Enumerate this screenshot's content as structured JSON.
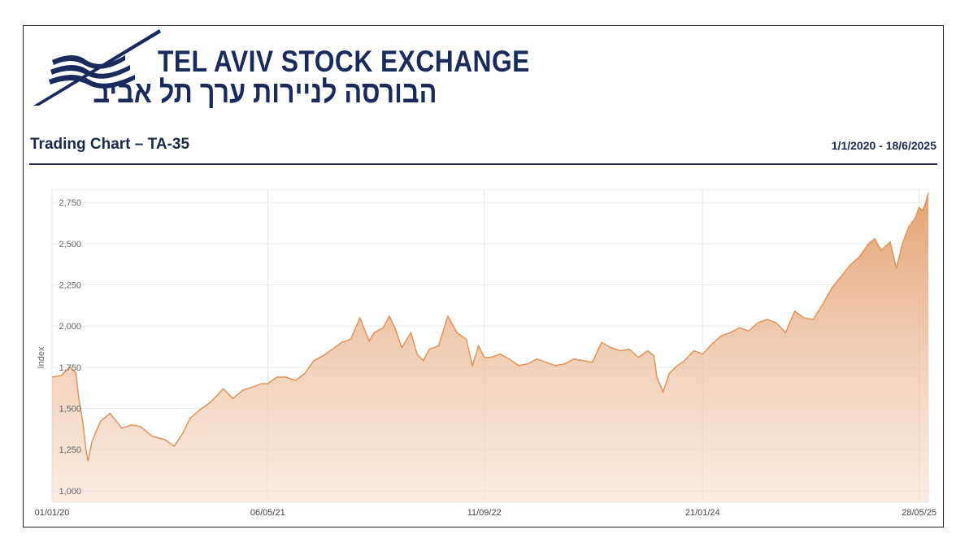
{
  "header": {
    "org_name_en": "TEL AVIV STOCK EXCHANGE",
    "org_name_he": "הבורסה לניירות ערך תל אביב",
    "logo_icon": "tase-wave-logo-icon",
    "brand_color": "#1b2a5c"
  },
  "chart_title": "Trading Chart – TA-35",
  "date_range": "1/1/2020 - 18/6/2025",
  "chart_data": {
    "type": "area",
    "title": "Trading Chart – TA-35",
    "xlabel": "",
    "ylabel": "Index",
    "ylim": [
      930,
      2830
    ],
    "xlim": [
      "2020-01-01",
      "2025-06-18"
    ],
    "grid": true,
    "line_color": "#e0935a",
    "fill_color": "#f3c5a4",
    "y_ticks": [
      "1,000",
      "1,250",
      "1,500",
      "1,750",
      "2,000",
      "2,250",
      "2,500",
      "2,750"
    ],
    "y_tick_values": [
      1000,
      1250,
      1500,
      1750,
      2000,
      2250,
      2500,
      2750
    ],
    "x_ticks": [
      "01/01/20",
      "06/05/21",
      "11/09/22",
      "21/01/24",
      "28/05/25"
    ],
    "x_tick_dates": [
      "2020-01-01",
      "2021-05-06",
      "2022-09-11",
      "2024-01-21",
      "2025-05-28"
    ],
    "series": [
      {
        "x": [
          "2020-01-01",
          "2020-01-22",
          "2020-02-10",
          "2020-02-24",
          "2020-03-02",
          "2020-03-12",
          "2020-03-18",
          "2020-03-23",
          "2020-04-01",
          "2020-04-20",
          "2020-05-12",
          "2020-06-08",
          "2020-07-01",
          "2020-07-20",
          "2020-08-17",
          "2020-09-14",
          "2020-10-05",
          "2020-10-25",
          "2020-11-10",
          "2020-12-02",
          "2020-12-28",
          "2021-01-25",
          "2021-02-16",
          "2021-03-10",
          "2021-04-01",
          "2021-04-22",
          "2021-05-06",
          "2021-05-27",
          "2021-06-17",
          "2021-07-08",
          "2021-07-29",
          "2021-08-19",
          "2021-09-09",
          "2021-09-30",
          "2021-10-21",
          "2021-11-11",
          "2021-12-02",
          "2021-12-23",
          "2022-01-03",
          "2022-01-24",
          "2022-02-07",
          "2022-02-21",
          "2022-03-07",
          "2022-03-28",
          "2022-04-11",
          "2022-04-25",
          "2022-05-09",
          "2022-05-30",
          "2022-06-20",
          "2022-07-11",
          "2022-08-01",
          "2022-08-15",
          "2022-08-29",
          "2022-09-11",
          "2022-09-26",
          "2022-10-17",
          "2022-11-07",
          "2022-11-28",
          "2022-12-19",
          "2023-01-09",
          "2023-01-30",
          "2023-02-20",
          "2023-03-13",
          "2023-04-03",
          "2023-04-24",
          "2023-05-15",
          "2023-06-05",
          "2023-06-26",
          "2023-07-17",
          "2023-08-07",
          "2023-08-28",
          "2023-09-18",
          "2023-10-02",
          "2023-10-09",
          "2023-10-23",
          "2023-11-06",
          "2023-11-20",
          "2023-12-11",
          "2024-01-01",
          "2024-01-21",
          "2024-02-11",
          "2024-03-03",
          "2024-03-24",
          "2024-04-14",
          "2024-05-05",
          "2024-05-26",
          "2024-06-16",
          "2024-07-07",
          "2024-07-28",
          "2024-08-18",
          "2024-09-08",
          "2024-09-29",
          "2024-10-20",
          "2024-11-10",
          "2024-12-01",
          "2024-12-22",
          "2025-01-12",
          "2025-02-02",
          "2025-02-16",
          "2025-03-02",
          "2025-03-23",
          "2025-04-06",
          "2025-04-20",
          "2025-05-04",
          "2025-05-18",
          "2025-05-28",
          "2025-06-04",
          "2025-06-11",
          "2025-06-18"
        ],
        "values": [
          1690,
          1700,
          1750,
          1720,
          1560,
          1400,
          1250,
          1180,
          1300,
          1420,
          1470,
          1380,
          1400,
          1390,
          1330,
          1310,
          1270,
          1350,
          1440,
          1490,
          1540,
          1620,
          1560,
          1610,
          1630,
          1650,
          1650,
          1690,
          1690,
          1670,
          1710,
          1790,
          1820,
          1860,
          1900,
          1920,
          2050,
          1910,
          1960,
          1990,
          2060,
          1980,
          1870,
          1960,
          1830,
          1790,
          1860,
          1880,
          2060,
          1960,
          1920,
          1760,
          1880,
          1810,
          1810,
          1830,
          1800,
          1760,
          1770,
          1800,
          1780,
          1760,
          1770,
          1800,
          1790,
          1780,
          1900,
          1870,
          1850,
          1860,
          1810,
          1850,
          1820,
          1690,
          1600,
          1710,
          1750,
          1790,
          1850,
          1830,
          1890,
          1940,
          1960,
          1990,
          1970,
          2020,
          2040,
          2020,
          1960,
          2090,
          2050,
          2040,
          2130,
          2230,
          2300,
          2370,
          2420,
          2500,
          2530,
          2460,
          2510,
          2350,
          2500,
          2600,
          2650,
          2720,
          2700,
          2740,
          2810
        ]
      }
    ]
  }
}
